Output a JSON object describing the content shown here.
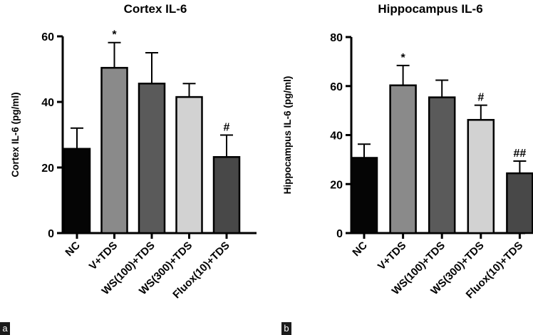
{
  "chart_data": [
    {
      "type": "bar",
      "panel_label": "a",
      "title": "Cortex IL-6",
      "ylabel": "Cortex IL-6 (pg/ml)",
      "ylim": [
        0,
        60
      ],
      "yticks": [
        0,
        20,
        40,
        60
      ],
      "categories": [
        "NC",
        "V+TDS",
        "WS(100)+TDS",
        "WS(300)+TDS",
        "Fluox(10)+TDS"
      ],
      "values": [
        25.7,
        50.4,
        45.6,
        41.5,
        23.2
      ],
      "errors": [
        6.3,
        7.7,
        9.4,
        4.1,
        6.7
      ],
      "annotations": [
        "",
        "*",
        "",
        "",
        "#"
      ],
      "bar_colors": [
        "#050505",
        "#8a8a8a",
        "#5a5a5a",
        "#d2d2d2",
        "#484848"
      ]
    },
    {
      "type": "bar",
      "panel_label": "b",
      "title": "Hippocampus IL-6",
      "ylabel": "Hippocampus IL-6 (pg/ml)",
      "ylim": [
        0,
        80
      ],
      "yticks": [
        0,
        20,
        40,
        60,
        80
      ],
      "categories": [
        "NC",
        "V+TDS",
        "WS(100)+TDS",
        "WS(300)+TDS",
        "Fluox(10)+TDS"
      ],
      "values": [
        30.7,
        60.3,
        55.4,
        46.2,
        24.4
      ],
      "errors": [
        5.6,
        8.1,
        7.0,
        6.0,
        5.0
      ],
      "annotations": [
        "",
        "*",
        "",
        "#",
        "##"
      ],
      "bar_colors": [
        "#050505",
        "#8a8a8a",
        "#5a5a5a",
        "#d2d2d2",
        "#484848"
      ]
    }
  ]
}
